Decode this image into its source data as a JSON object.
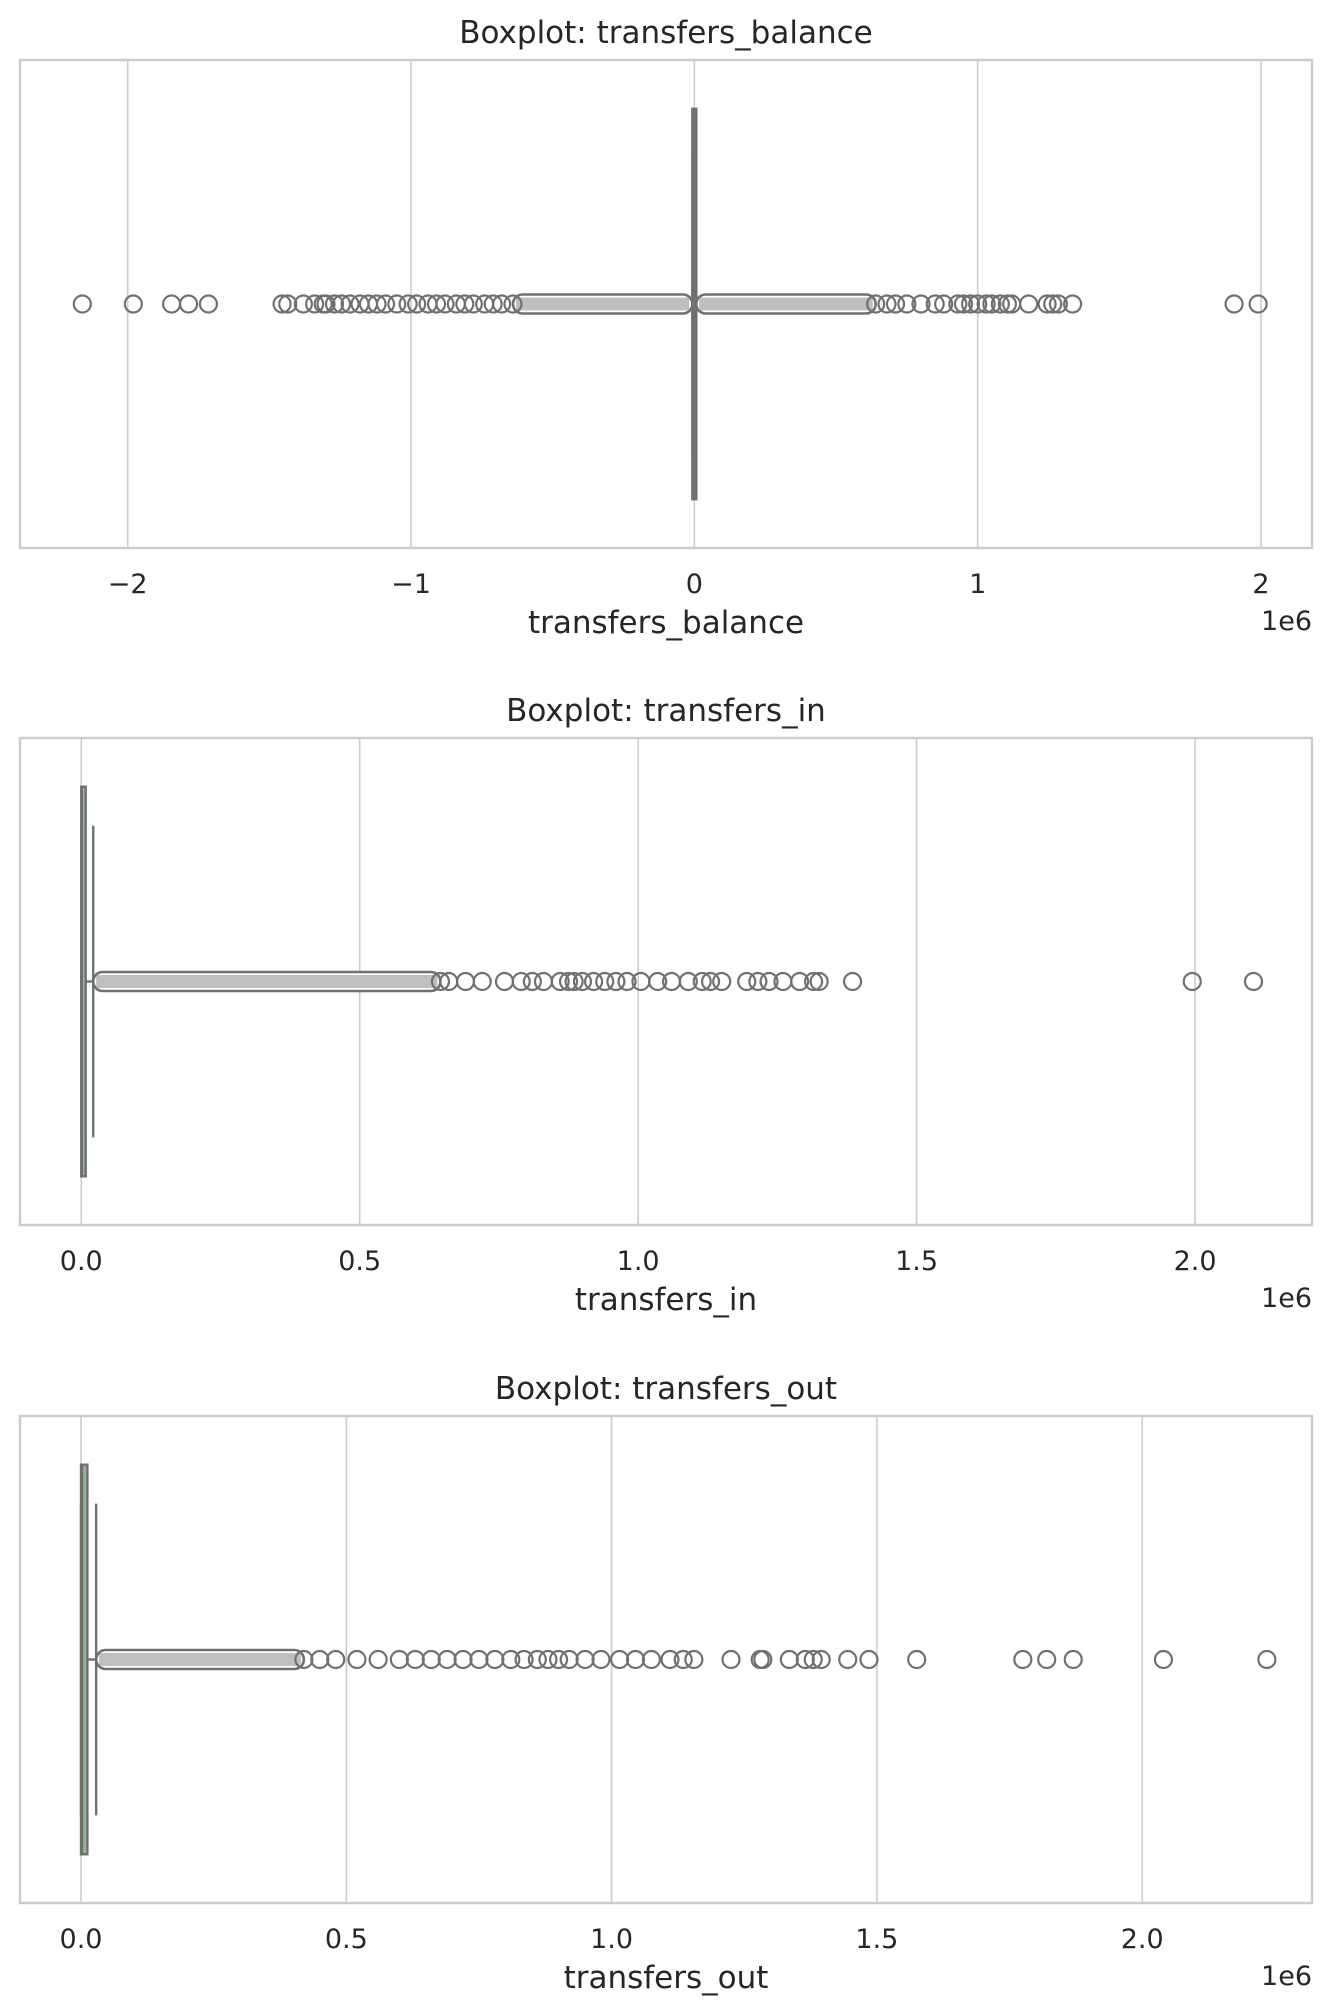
{
  "figure": {
    "background": "#ffffff"
  },
  "chart_data": [
    {
      "type": "boxplot",
      "title": "Boxplot: transfers_balance",
      "xlabel": "transfers_balance",
      "scale_label": "1e6",
      "xlim": [
        -2.38,
        2.18
      ],
      "ticks": [
        -2,
        -1,
        0,
        1,
        2
      ],
      "tick_labels": [
        "−2",
        "−1",
        "0",
        "1",
        "2"
      ],
      "grid": true,
      "box_color": "#8fbc8f",
      "line_color": "#707070",
      "box": {
        "q1": -0.004,
        "median": 0.0,
        "q3": 0.004
      },
      "whiskers": [
        -0.0066,
        0.0066
      ],
      "outliers": [
        -2.16,
        -1.98,
        -1.845,
        -1.785,
        -1.715,
        -1.455,
        -1.435,
        -1.38,
        -1.34,
        -1.31,
        -1.3,
        -1.27,
        -1.245,
        -1.215,
        -1.18,
        -1.15,
        -1.12,
        -1.09,
        -1.05,
        -1.01,
        -0.98,
        -0.94,
        -0.91,
        -0.88,
        -0.84,
        -0.81,
        -0.78,
        -0.74,
        -0.71,
        -0.68,
        -0.64,
        0.64,
        0.68,
        0.71,
        0.75,
        0.8,
        0.85,
        0.88,
        0.93,
        0.95,
        0.975,
        1.0,
        1.03,
        1.05,
        1.08,
        1.105,
        1.12,
        1.18,
        1.245,
        1.265,
        1.285,
        1.335,
        1.905,
        1.99
      ],
      "dense_ranges": [
        [
          -0.64,
          -0.0066
        ],
        [
          0.0066,
          0.64
        ]
      ]
    },
    {
      "type": "boxplot",
      "title": "Boxplot: transfers_in",
      "xlabel": "transfers_in",
      "scale_label": "1e6",
      "xlim": [
        -0.11,
        2.21
      ],
      "ticks": [
        0.0,
        0.5,
        1.0,
        1.5,
        2.0
      ],
      "tick_labels": [
        "0.0",
        "0.5",
        "1.0",
        "1.5",
        "2.0"
      ],
      "grid": true,
      "box_color": "#8fbc8f",
      "line_color": "#707070",
      "box": {
        "q1": 0.0,
        "median": 0.001,
        "q3": 0.008
      },
      "whiskers": [
        0.0,
        0.0215
      ],
      "outliers": [
        0.645,
        0.66,
        0.69,
        0.72,
        0.76,
        0.79,
        0.81,
        0.83,
        0.86,
        0.875,
        0.885,
        0.9,
        0.92,
        0.94,
        0.96,
        0.98,
        1.005,
        1.035,
        1.06,
        1.09,
        1.115,
        1.13,
        1.15,
        1.195,
        1.215,
        1.235,
        1.26,
        1.29,
        1.315,
        1.325,
        1.385,
        1.995,
        2.105
      ],
      "dense_ranges": [
        [
          0.0215,
          0.645
        ]
      ]
    },
    {
      "type": "boxplot",
      "title": "Boxplot: transfers_out",
      "xlabel": "transfers_out",
      "scale_label": "1e6",
      "xlim": [
        -0.115,
        2.32
      ],
      "ticks": [
        0.0,
        0.5,
        1.0,
        1.5,
        2.0
      ],
      "tick_labels": [
        "0.0",
        "0.5",
        "1.0",
        "1.5",
        "2.0"
      ],
      "grid": true,
      "box_color": "#8fbc8f",
      "line_color": "#707070",
      "box": {
        "q1": 0.0,
        "median": 0.002,
        "q3": 0.012
      },
      "whiskers": [
        0.0,
        0.0285
      ],
      "outliers": [
        0.42,
        0.45,
        0.48,
        0.52,
        0.56,
        0.6,
        0.63,
        0.66,
        0.69,
        0.72,
        0.75,
        0.78,
        0.81,
        0.835,
        0.86,
        0.88,
        0.9,
        0.92,
        0.95,
        0.98,
        1.015,
        1.045,
        1.075,
        1.11,
        1.135,
        1.155,
        1.225,
        1.28,
        1.285,
        1.335,
        1.365,
        1.38,
        1.395,
        1.445,
        1.485,
        1.575,
        1.775,
        1.82,
        1.87,
        2.04,
        2.235
      ],
      "dense_ranges": [
        [
          0.0285,
          0.42
        ]
      ]
    }
  ]
}
